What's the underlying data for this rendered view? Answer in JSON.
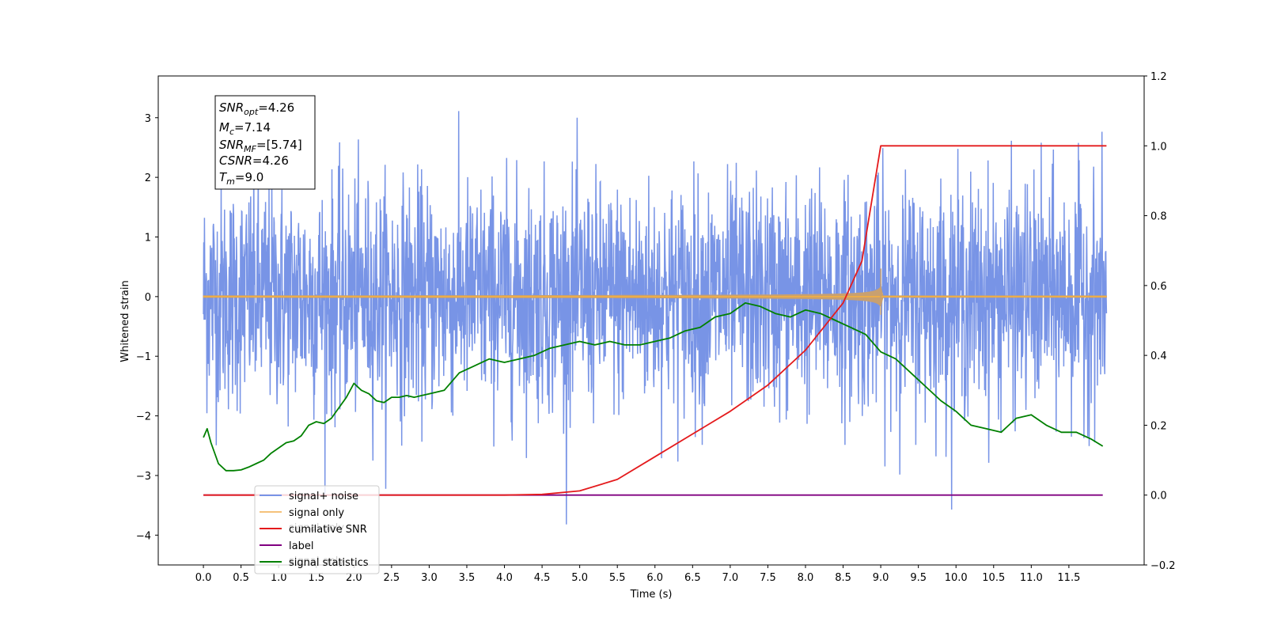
{
  "chart_data": {
    "type": "line",
    "xlabel": "Time (s)",
    "ylabel_left": "Whitened strain",
    "ylabel_right": "",
    "xlim": [
      -0.6,
      12.5
    ],
    "ylim_left": [
      -4.5,
      3.7
    ],
    "ylim_right": [
      -0.2,
      1.2
    ],
    "x_ticks": [
      "0.0",
      "0.5",
      "1.0",
      "1.5",
      "2.0",
      "2.5",
      "3.0",
      "3.5",
      "4.0",
      "4.5",
      "5.0",
      "5.5",
      "6.0",
      "6.5",
      "7.0",
      "7.5",
      "8.0",
      "8.5",
      "9.0",
      "9.5",
      "10.0",
      "10.5",
      "11.0",
      "11.5"
    ],
    "y_ticks_left": [
      "3",
      "2",
      "1",
      "0",
      "−1",
      "−2",
      "−3",
      "−4"
    ],
    "y_ticks_right": [
      "1.2",
      "1.0",
      "0.8",
      "0.6",
      "0.4",
      "0.2",
      "0.0",
      "−0.2"
    ],
    "grid": false,
    "legend_position": "bottom-left",
    "colors": {
      "signal_noise": "#7894e6",
      "signal_only": "#f5b041",
      "signal_only_fill": "#c8a070",
      "cumulative_snr": "#e41a1c",
      "label": "#800080",
      "signal_statistics": "#008000"
    },
    "series": [
      {
        "name": "signal+ noise",
        "axis": "left",
        "x_range": [
          0.0,
          12.0
        ],
        "approx_range": [
          -4.1,
          3.3
        ]
      },
      {
        "name": "signal only",
        "axis": "left",
        "t_start": 0.0,
        "t_merger": 9.0,
        "t_end": 12.0,
        "peak_amplitude": 0.47
      },
      {
        "name": "cumilative SNR",
        "axis": "right",
        "x": [
          0.0,
          4.0,
          4.5,
          5.0,
          5.5,
          6.0,
          6.5,
          7.0,
          7.5,
          8.0,
          8.5,
          8.75,
          9.0,
          9.25,
          12.0
        ],
        "y": [
          0.0,
          0.0,
          0.002,
          0.012,
          0.045,
          0.11,
          0.175,
          0.24,
          0.315,
          0.415,
          0.55,
          0.67,
          1.0,
          1.0,
          1.0
        ]
      },
      {
        "name": "label",
        "axis": "right",
        "x": [
          0.0,
          11.95
        ],
        "y": [
          0.0,
          0.0
        ]
      },
      {
        "name": "signal statistics",
        "axis": "right",
        "x": [
          0.0,
          0.05,
          0.1,
          0.2,
          0.3,
          0.4,
          0.5,
          0.6,
          0.7,
          0.8,
          0.9,
          1.0,
          1.1,
          1.2,
          1.3,
          1.4,
          1.5,
          1.6,
          1.7,
          1.8,
          1.9,
          2.0,
          2.1,
          2.2,
          2.3,
          2.4,
          2.5,
          2.6,
          2.7,
          2.8,
          2.9,
          3.0,
          3.2,
          3.4,
          3.6,
          3.8,
          4.0,
          4.2,
          4.4,
          4.6,
          4.8,
          5.0,
          5.2,
          5.4,
          5.6,
          5.8,
          6.0,
          6.2,
          6.4,
          6.6,
          6.8,
          7.0,
          7.2,
          7.4,
          7.6,
          7.8,
          8.0,
          8.2,
          8.4,
          8.6,
          8.8,
          9.0,
          9.2,
          9.4,
          9.6,
          9.8,
          10.0,
          10.2,
          10.4,
          10.6,
          10.8,
          11.0,
          11.2,
          11.4,
          11.6,
          11.8,
          11.95
        ],
        "y": [
          0.165,
          0.19,
          0.15,
          0.09,
          0.07,
          0.07,
          0.072,
          0.08,
          0.09,
          0.1,
          0.12,
          0.135,
          0.15,
          0.155,
          0.17,
          0.2,
          0.21,
          0.205,
          0.22,
          0.25,
          0.28,
          0.32,
          0.3,
          0.29,
          0.27,
          0.265,
          0.28,
          0.28,
          0.285,
          0.28,
          0.285,
          0.29,
          0.3,
          0.35,
          0.37,
          0.39,
          0.38,
          0.39,
          0.4,
          0.42,
          0.43,
          0.44,
          0.43,
          0.44,
          0.43,
          0.43,
          0.44,
          0.45,
          0.47,
          0.48,
          0.51,
          0.52,
          0.55,
          0.54,
          0.52,
          0.51,
          0.53,
          0.52,
          0.5,
          0.48,
          0.46,
          0.41,
          0.39,
          0.35,
          0.31,
          0.27,
          0.24,
          0.2,
          0.19,
          0.18,
          0.22,
          0.23,
          0.2,
          0.18,
          0.18,
          0.16,
          0.14
        ]
      }
    ]
  },
  "annotation": {
    "snr_opt": {
      "base": "SNR",
      "sub": "opt",
      "value": "=4.26"
    },
    "mc": {
      "base": "M",
      "sub": "c",
      "value": "=7.14"
    },
    "snr_mf": {
      "base": "SNR",
      "sub": "MF",
      "value": "=[5.74]"
    },
    "csnr": {
      "base": "CSNR",
      "value": "=4.26"
    },
    "tm": {
      "base": "T",
      "sub": "m",
      "value": "=9.0"
    }
  },
  "legend": {
    "entries": [
      {
        "label": "signal+ noise",
        "color": "#7894e6"
      },
      {
        "label": "signal only",
        "color": "#f5c27a"
      },
      {
        "label": "cumilative SNR",
        "color": "#e41a1c"
      },
      {
        "label": "label",
        "color": "#800080"
      },
      {
        "label": "signal statistics",
        "color": "#008000"
      }
    ],
    "ghost_text": [
      "signal only",
      "signal only"
    ]
  }
}
